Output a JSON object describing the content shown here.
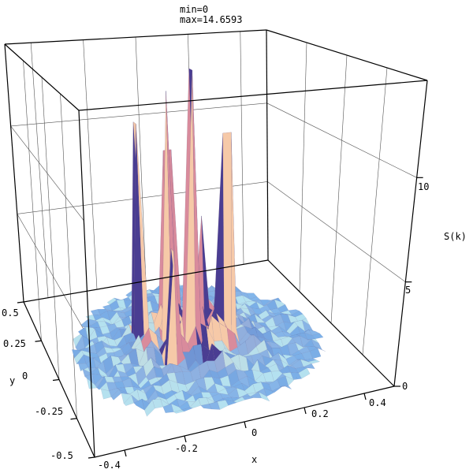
{
  "chart_data": {
    "type": "surface3d",
    "title_lines": [
      "min=0",
      "max=14.6593"
    ],
    "xlabel": "x",
    "ylabel": "y",
    "zlabel": "S(k)",
    "xlim": [
      -0.5,
      0.5
    ],
    "ylim": [
      -0.5,
      0.5
    ],
    "zlim": [
      0,
      14.6593
    ],
    "x_ticks": [
      "-0.4",
      "-0.2",
      "0",
      "0.2",
      "0.4"
    ],
    "y_ticks": [
      "0.5",
      "0.25",
      "0",
      "-0.25",
      "-0.5"
    ],
    "z_ticks": [
      "0",
      "5",
      "10"
    ],
    "grid": true,
    "peaks": [
      {
        "x": -0.02,
        "y": -0.04,
        "z": 14.66
      },
      {
        "x": -0.08,
        "y": 0.02,
        "z": 13.4
      },
      {
        "x": -0.16,
        "y": 0.1,
        "z": 11.6
      },
      {
        "x": 0.1,
        "y": -0.02,
        "z": 11.2
      },
      {
        "x": -0.04,
        "y": 0.14,
        "z": 9.8
      },
      {
        "x": 0.06,
        "y": 0.08,
        "z": 6.4
      },
      {
        "x": -0.12,
        "y": -0.1,
        "z": 6.0
      },
      {
        "x": 0.14,
        "y": 0.12,
        "z": 4.8
      }
    ],
    "colors": {
      "peak_light": "#f6c9a8",
      "peak_pink": "#d98b9c",
      "peak_blue": "#4a3d92",
      "base_light": "#aee3f6",
      "base_mid": "#7fb8ee",
      "base_dark": "#8c73c6"
    }
  }
}
